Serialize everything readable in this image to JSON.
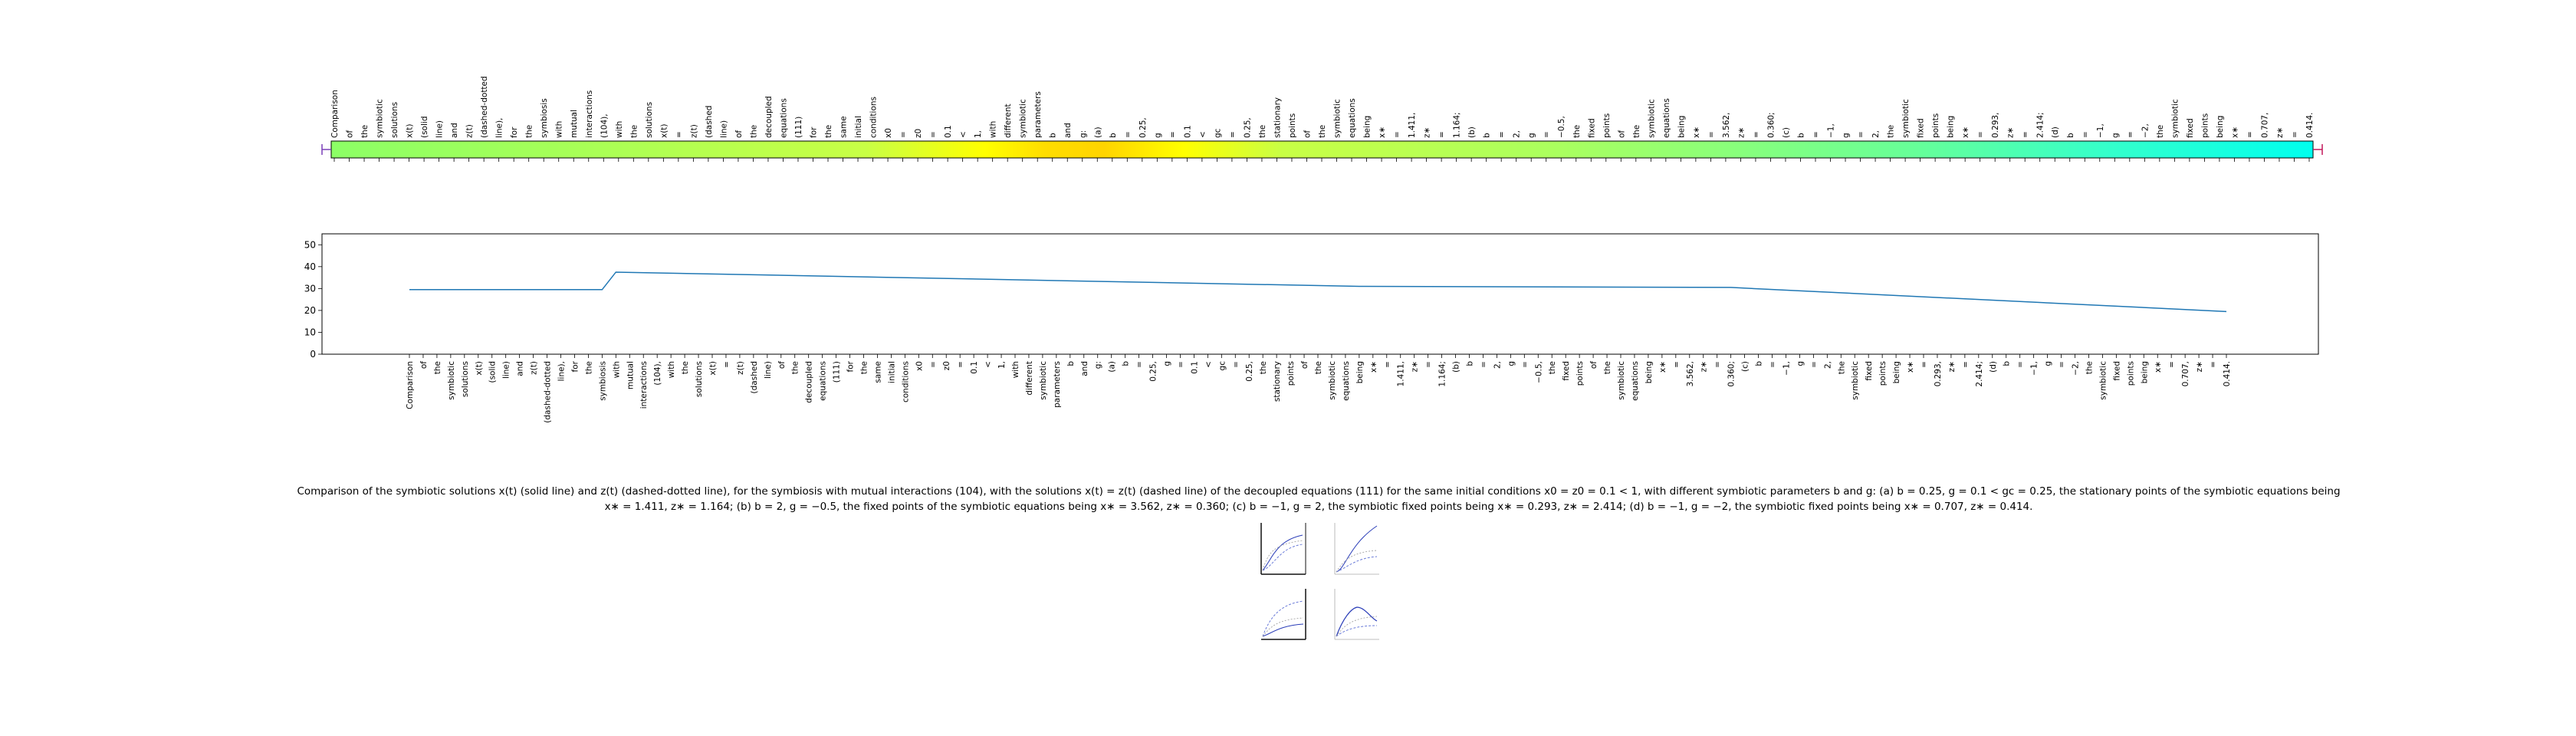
{
  "chart_data": {
    "type": "line",
    "title": "",
    "xlabel": "",
    "ylabel": "",
    "ylim": [
      0,
      55
    ],
    "yticks": [
      0,
      10,
      20,
      30,
      40,
      50
    ],
    "x_tick_labels": [
      "Comparison",
      "of",
      "the",
      "symbiotic",
      "solutions",
      "x(t)",
      "(solid",
      "line)",
      "and",
      "z(t)",
      "(dashed-dotted",
      "line),",
      "for",
      "the",
      "symbiosis",
      "with",
      "mutual",
      "interactions",
      "(104),",
      "with",
      "the",
      "solutions",
      "x(t)",
      "=",
      "z(t)",
      "(dashed",
      "line)",
      "of",
      "the",
      "decoupled",
      "equations",
      "(111)",
      "for",
      "the",
      "same",
      "initial",
      "conditions",
      "x0",
      "=",
      "z0",
      "=",
      "0.1",
      "<",
      "1,",
      "with",
      "different",
      "symbiotic",
      "parameters",
      "b",
      "and",
      "g:",
      "(a)",
      "b",
      "=",
      "0.25,",
      "g",
      "=",
      "0.1",
      "<",
      "gc",
      "=",
      "0.25,",
      "the",
      "stationary",
      "points",
      "of",
      "the",
      "symbiotic",
      "equations",
      "being",
      "x∗",
      "=",
      "1.411,",
      "z∗",
      "=",
      "1.164;",
      "(b)",
      "b",
      "=",
      "2,",
      "g",
      "=",
      "−0.5,",
      "the",
      "fixed",
      "points",
      "of",
      "the",
      "symbiotic",
      "equations",
      "being",
      "x∗",
      "=",
      "3.562,",
      "z∗",
      "=",
      "0.360;",
      "(c)",
      "b",
      "=",
      "−1,",
      "g",
      "=",
      "2,",
      "the",
      "symbiotic",
      "fixed",
      "points",
      "being",
      "x∗",
      "=",
      "0.293,",
      "z∗",
      "=",
      "2.414;",
      "(d)",
      "b",
      "=",
      "−1,",
      "g",
      "=",
      "−2,",
      "the",
      "symbiotic",
      "fixed",
      "points",
      "being",
      "x∗",
      "=",
      "0.707,",
      "z∗",
      "=",
      "0.414."
    ],
    "series": [
      {
        "color": "#1f77b4",
        "points": [
          {
            "x": "Comparison",
            "y": 29.5
          },
          {
            "x": "symbiosis",
            "y": 29.5
          },
          {
            "x": "with",
            "y": 37.5
          },
          {
            "x": "being",
            "y": 31.0
          },
          {
            "x": "0.360;",
            "y": 30.5
          },
          {
            "x": "0.414.",
            "y": 19.5
          }
        ]
      }
    ],
    "grid": false,
    "legend": "none",
    "word_strip": {
      "labels": [
        "Comparison",
        "of",
        "the",
        "symbiotic",
        "solutions",
        "x(t)",
        "(solid",
        "line)",
        "and",
        "z(t)",
        "(dashed-dotted",
        "line),",
        "for",
        "the",
        "symbiosis",
        "with",
        "mutual",
        "interactions",
        "(104),",
        "with",
        "the",
        "solutions",
        "x(t)",
        "=",
        "z(t)",
        "(dashed",
        "line)",
        "of",
        "the",
        "decoupled",
        "equations",
        "(111)",
        "for",
        "the",
        "same",
        "initial",
        "conditions",
        "x0",
        "=",
        "z0",
        "=",
        "0.1",
        "<",
        "1,",
        "with",
        "different",
        "symbiotic",
        "parameters",
        "b",
        "and",
        "g:",
        "(a)",
        "b",
        "=",
        "0.25,",
        "g",
        "=",
        "0.1",
        "<",
        "gc",
        "=",
        "0.25,",
        "the",
        "stationary",
        "points",
        "of",
        "the",
        "symbiotic",
        "equations",
        "being",
        "x∗",
        "=",
        "1.411,",
        "z∗",
        "=",
        "1.164;",
        "(b)",
        "b",
        "=",
        "2,",
        "g",
        "=",
        "−0.5,",
        "the",
        "fixed",
        "points",
        "of",
        "the",
        "symbiotic",
        "equations",
        "being",
        "x∗",
        "=",
        "3.562,",
        "z∗",
        "=",
        "0.360;",
        "(c)",
        "b",
        "=",
        "−1,",
        "g",
        "=",
        "2,",
        "the",
        "symbiotic",
        "fixed",
        "points",
        "being",
        "x∗",
        "=",
        "0.293,",
        "z∗",
        "=",
        "2.414;",
        "(d)",
        "b",
        "=",
        "−1,",
        "g",
        "=",
        "−2,",
        "the",
        "symbiotic",
        "fixed",
        "points",
        "being",
        "x∗",
        "=",
        "0.707,",
        "z∗",
        "=",
        "0.414."
      ],
      "colormap_stops": [
        "#8cff66",
        "#ffff00",
        "#ffd400",
        "#aaff5f",
        "#00ffee"
      ]
    }
  },
  "caption": "Comparison of the symbiotic solutions x(t) (solid line) and z(t) (dashed-dotted line), for the symbiosis with mutual interactions (104), with the solutions x(t) = z(t) (dashed line) of the decoupled equations (111) for the same initial conditions x0 = z0 = 0.1 < 1, with different symbiotic parameters b and g: (a) b = 0.25, g = 0.1 < gc = 0.25, the stationary points of the symbiotic equations being x∗ = 1.411, z∗ = 1.164; (b) b = 2, g = −0.5, the fixed points of the symbiotic equations being x∗ = 3.562, z∗ = 0.360; (c) b = −1, g = 2, the symbiotic fixed points being x∗ = 0.293, z∗ = 2.414; (d) b = −1, g = −2, the symbiotic fixed points being x∗ = 0.707, z∗ = 0.414.",
  "thumbnails": [
    "panel-a",
    "panel-b",
    "panel-c",
    "panel-d"
  ]
}
